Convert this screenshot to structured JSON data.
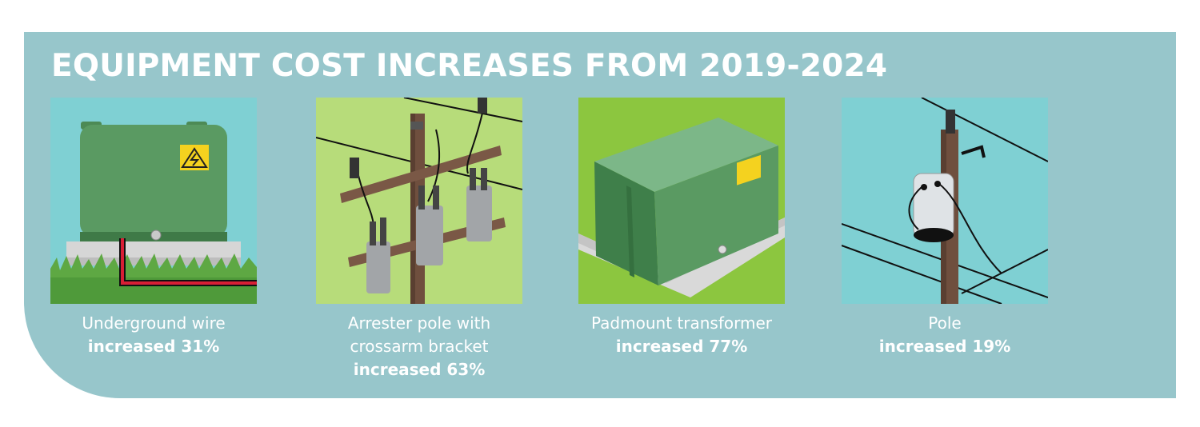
{
  "title": "EQUIPMENT COST INCREASES FROM 2019-2024",
  "colors": {
    "panel": "#97c6cb",
    "sky": "#7fd0d3",
    "lime": "#b7dc7a",
    "green_box": "#5a9a62",
    "pole_brown": "#6f4f3e",
    "cable_red": "#d81f35"
  },
  "items": [
    {
      "icon": "underground-wire-icon",
      "label_lines": [
        "Underground wire"
      ],
      "increase": "increased 31%"
    },
    {
      "icon": "arrester-pole-icon",
      "label_lines": [
        "Arrester pole with",
        "crossarm bracket"
      ],
      "increase": "increased 63%"
    },
    {
      "icon": "padmount-transformer-icon",
      "label_lines": [
        "Padmount transformer"
      ],
      "increase": "increased 77%"
    },
    {
      "icon": "pole-transformer-icon",
      "label_lines": [
        "Pole"
      ],
      "increase": "increased 19%"
    }
  ]
}
